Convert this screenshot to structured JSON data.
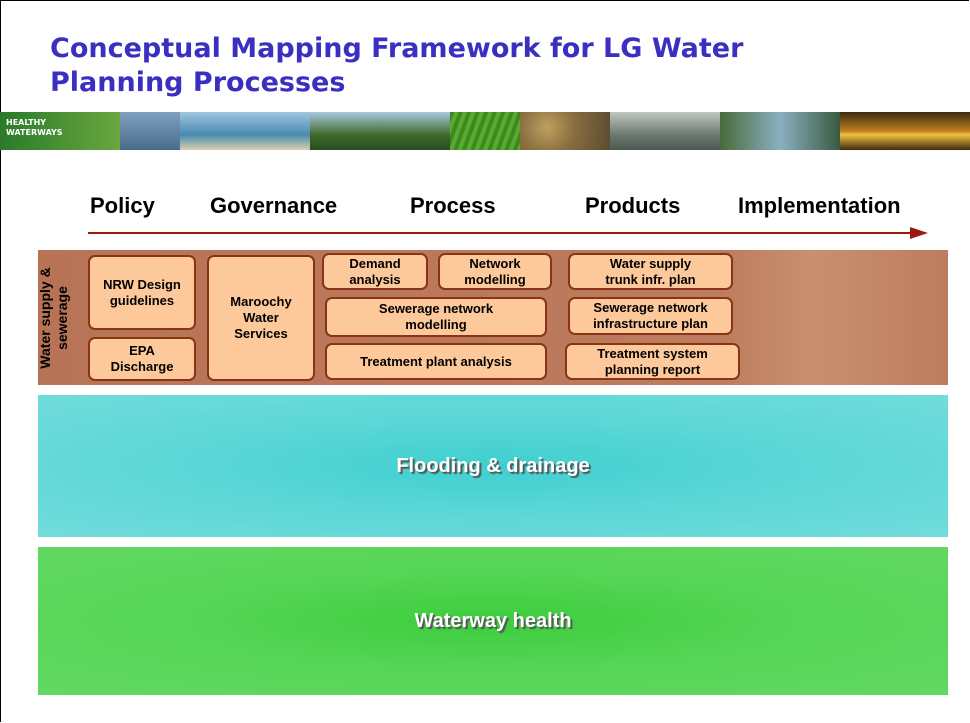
{
  "header": {
    "title": "Conceptual Mapping Framework for LG Water Planning Processes",
    "logo": [
      "HEALTHY",
      "WATERWAYS"
    ]
  },
  "stages": [
    "Policy",
    "Governance",
    "Process",
    "Products",
    "Implementation"
  ],
  "rows": [
    {
      "label": "Water supply & sewerage",
      "boxes": [
        "NRW Design guidelines",
        "EPA Discharge",
        "Maroochy Water Services",
        "Demand analysis",
        "Network modelling",
        "Sewerage network modelling",
        "Treatment plant analysis",
        "Water supply trunk infr. plan",
        "Sewerage network infrastructure plan",
        "Treatment system planning report"
      ]
    },
    {
      "label": "Flooding & drainage"
    },
    {
      "label": "Waterway health"
    }
  ]
}
